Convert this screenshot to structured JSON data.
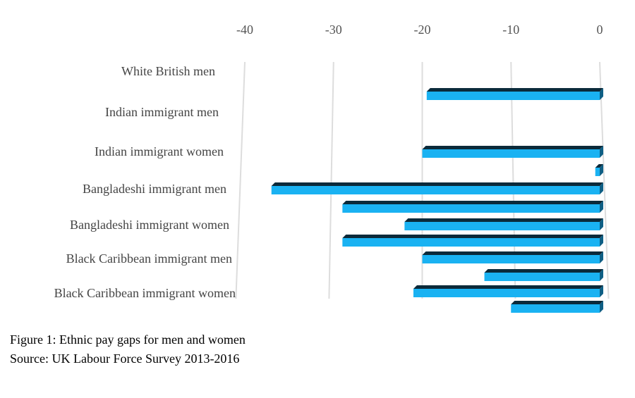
{
  "chart_data": {
    "type": "bar",
    "title": "Figure 1: Ethnic pay gaps for men and women",
    "subtitle": "Source: UK Labour Force Survey 2013-2016",
    "categories": [
      "White British men",
      "Indian immigrant men",
      "Indian immigrant women",
      null,
      "Bangladeshi immigrant men",
      null,
      "Bangladeshi immigrant women",
      null,
      "Black Caribbean immigrant men",
      null,
      "Black Caribbean immigrant women",
      null
    ],
    "values": [
      -19.5,
      null,
      -20,
      -0.5,
      -37,
      -29,
      -22,
      -29,
      -20,
      -13,
      -21,
      -10
    ],
    "color": "#1ab2f2",
    "xlim": [
      -40,
      0
    ],
    "xticks": [
      -40,
      -30,
      -20,
      -10,
      0
    ],
    "grid": true
  }
}
